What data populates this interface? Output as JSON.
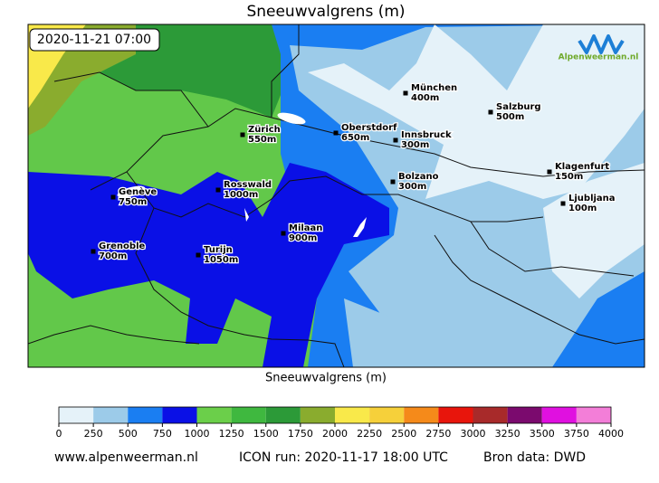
{
  "title": "Sneeuwvalgrens (m)",
  "map": {
    "timestamp": "2020-11-21 07:00",
    "logo": "Alpenweerman.nl",
    "xlabel": "Sneeuwvalgrens (m)",
    "cities": [
      {
        "name": "München",
        "label": "400m"
      },
      {
        "name": "Salzburg",
        "label": "500m"
      },
      {
        "name": "Zürich",
        "label": "550m"
      },
      {
        "name": "Oberstdorf",
        "label": "650m"
      },
      {
        "name": "Innsbruck",
        "label": "300m"
      },
      {
        "name": "Klagenfurt",
        "label": "150m"
      },
      {
        "name": "Bolzano",
        "label": "300m"
      },
      {
        "name": "Ljubljana",
        "label": "100m"
      },
      {
        "name": "Genève",
        "label": "750m"
      },
      {
        "name": "Rosswald",
        "label": "1000m"
      },
      {
        "name": "Milaan",
        "label": "900m"
      },
      {
        "name": "Grenoble",
        "label": "700m"
      },
      {
        "name": "Turijn",
        "label": "1050m"
      }
    ]
  },
  "colorbar": {
    "ticks": [
      0,
      250,
      500,
      750,
      1000,
      1250,
      1500,
      1750,
      2000,
      2250,
      2500,
      2750,
      3000,
      3250,
      3500,
      3750,
      4000
    ],
    "colors": [
      "#e5f2f9",
      "#9ccbe9",
      "#1a7ef2",
      "#0a10e6",
      "#6bcf4a",
      "#3fb83f",
      "#2c9a38",
      "#8aac2e",
      "#f9e94a",
      "#f6d03a",
      "#f58a1a",
      "#e8150c",
      "#a82a2a",
      "#7b0a6e",
      "#e010e0",
      "#f37ed8"
    ]
  },
  "footer": {
    "site": "www.alpenweerman.nl",
    "run": "ICON run: 2020-11-17 18:00 UTC",
    "source": "Bron data: DWD"
  }
}
